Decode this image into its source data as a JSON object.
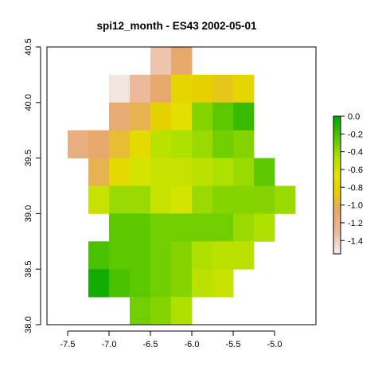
{
  "chart_data": {
    "type": "heatmap",
    "title": "spi12_month - ES43 2002-05-01",
    "xlabel": "",
    "ylabel": "",
    "xlim": [
      -7.75,
      -4.5
    ],
    "ylim": [
      38.0,
      40.5
    ],
    "x_ticks": [
      -7.5,
      -7.0,
      -6.5,
      -6.0,
      -5.5,
      -5.0
    ],
    "x_tick_labels": [
      "-7.5",
      "-7.0",
      "-6.5",
      "-6.0",
      "-5.5",
      "-5.0"
    ],
    "y_ticks": [
      38.0,
      38.5,
      39.0,
      39.5,
      40.0,
      40.5
    ],
    "y_tick_labels": [
      "38.0",
      "38.5",
      "39.0",
      "39.5",
      "40.0",
      "40.5"
    ],
    "cell_size": 0.25,
    "cell_centers_x": [
      -7.375,
      -7.125,
      -6.875,
      -6.625,
      -6.375,
      -6.125,
      -5.875,
      -5.625,
      -5.375,
      -5.125,
      -4.875
    ],
    "cell_centers_y": [
      40.375,
      40.125,
      39.875,
      39.625,
      39.375,
      39.125,
      38.875,
      38.625,
      38.375,
      38.125
    ],
    "z": [
      [
        null,
        null,
        null,
        null,
        -1.35,
        -1.05,
        null,
        null,
        null,
        null,
        null
      ],
      [
        null,
        null,
        -1.5,
        -1.3,
        -1.05,
        -0.8,
        -0.85,
        -0.9,
        -0.8,
        null,
        null
      ],
      [
        null,
        null,
        -1.1,
        -1.0,
        -0.85,
        -0.7,
        -0.35,
        -0.25,
        -0.15,
        null,
        null
      ],
      [
        -1.15,
        -1.05,
        -0.95,
        -0.75,
        -0.5,
        -0.45,
        -0.4,
        -0.3,
        -0.35,
        null,
        null
      ],
      [
        null,
        -1.0,
        -0.75,
        -0.6,
        -0.55,
        -0.55,
        -0.5,
        -0.45,
        -0.4,
        -0.25,
        null
      ],
      [
        null,
        -0.55,
        -0.4,
        -0.4,
        -0.55,
        -0.6,
        -0.4,
        -0.35,
        -0.35,
        -0.35,
        -0.4
      ],
      [
        null,
        null,
        -0.25,
        -0.25,
        -0.3,
        -0.3,
        -0.3,
        -0.3,
        -0.4,
        -0.45,
        null
      ],
      [
        null,
        -0.2,
        -0.25,
        -0.25,
        -0.3,
        -0.35,
        -0.45,
        -0.5,
        -0.5,
        null,
        null
      ],
      [
        null,
        -0.05,
        -0.2,
        -0.25,
        -0.3,
        -0.35,
        -0.5,
        -0.55,
        null,
        null,
        null
      ],
      [
        null,
        null,
        null,
        -0.3,
        -0.35,
        -0.45,
        null,
        null,
        null,
        null,
        null
      ]
    ],
    "zlim": [
      -1.55,
      0.0
    ],
    "legend": {
      "ticks": [
        0.0,
        -0.2,
        -0.4,
        -0.6,
        -0.8,
        -1.0,
        -1.2,
        -1.4
      ],
      "tick_labels": [
        "0.0",
        "-0.2",
        "-0.4",
        "-0.6",
        "-0.8",
        "-1.0",
        "-1.2",
        "-1.4"
      ],
      "color_stops": [
        {
          "value": -1.55,
          "color": "#f2f2f2"
        },
        {
          "value": -1.3,
          "color": "#ecb99a"
        },
        {
          "value": -1.05,
          "color": "#e6a96b"
        },
        {
          "value": -0.85,
          "color": "#e6d000"
        },
        {
          "value": -0.65,
          "color": "#e2e400"
        },
        {
          "value": -0.45,
          "color": "#aee000"
        },
        {
          "value": -0.25,
          "color": "#5cc800"
        },
        {
          "value": 0.0,
          "color": "#00a600"
        }
      ]
    }
  }
}
